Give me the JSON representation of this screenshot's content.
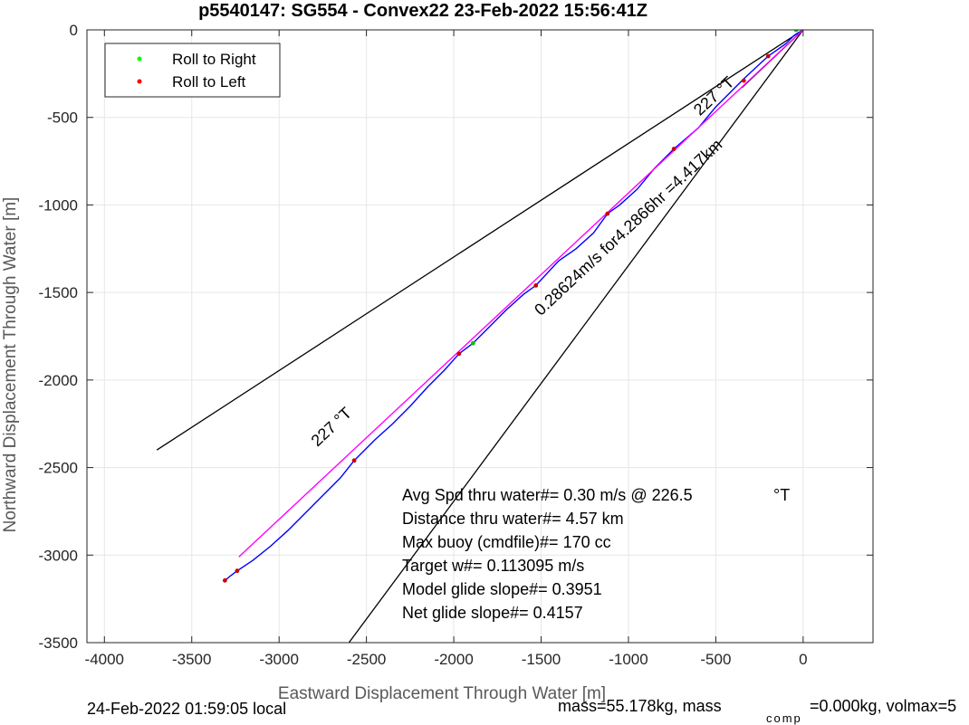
{
  "chart_data": {
    "type": "line",
    "title": "p5540147: SG554 - Convex22 23-Feb-2022 15:56:41Z",
    "xlabel": "Eastward Displacement Through Water [m]",
    "ylabel": "Northward Displacement Through Water [m]",
    "xlim": [
      -4100,
      400
    ],
    "ylim": [
      -3500,
      0
    ],
    "xticks": [
      -4000,
      -3500,
      -3000,
      -2500,
      -2000,
      -1500,
      -1000,
      -500,
      0
    ],
    "yticks": [
      0,
      -500,
      -1000,
      -1500,
      -2000,
      -2500,
      -3000,
      -3500
    ],
    "grid": true,
    "legend": {
      "placement": "top-left",
      "entries": [
        {
          "label": "Roll to Right",
          "color": "#00ff00"
        },
        {
          "label": "Roll to Left",
          "color": "#ff0000"
        }
      ]
    },
    "series": [
      {
        "color": "#0000ff",
        "x": [
          0,
          -50,
          -100,
          -200,
          -340,
          -400,
          -500,
          -600,
          -740,
          -850,
          -950,
          -1050,
          -1120,
          -1200,
          -1300,
          -1400,
          -1530,
          -1600,
          -1700,
          -1800,
          -1890,
          -1970,
          -2050,
          -2150,
          -2250,
          -2350,
          -2450,
          -2570,
          -2650,
          -2750,
          -2850,
          -2950,
          -3050,
          -3150,
          -3240,
          -3280,
          -3310
        ],
        "y": [
          0,
          -30,
          -80,
          -150,
          -280,
          -340,
          -440,
          -560,
          -680,
          -790,
          -910,
          -1000,
          -1050,
          -1160,
          -1250,
          -1320,
          -1460,
          -1510,
          -1600,
          -1700,
          -1790,
          -1850,
          -1940,
          -2040,
          -2150,
          -2250,
          -2340,
          -2460,
          -2560,
          -2660,
          -2760,
          -2860,
          -2950,
          -3030,
          -3090,
          -3120,
          -3145
        ]
      },
      {
        "color": "#ff00ff",
        "x": [
          0,
          -3230
        ],
        "y": [
          0,
          -3010
        ]
      }
    ],
    "reference_lines": [
      {
        "color": "#000000",
        "x": [
          0,
          -3700
        ],
        "y": [
          0,
          -2400
        ]
      },
      {
        "color": "#000000",
        "x": [
          0,
          -2600
        ],
        "y": [
          0,
          -3500
        ]
      },
      {
        "color": "#000000",
        "x": [
          0,
          -350
        ],
        "y": [
          0,
          -330
        ]
      }
    ],
    "roll_points": [
      {
        "roll": "right",
        "color": "#00c800",
        "x": -40,
        "y": 0
      },
      {
        "roll": "right",
        "color": "#00c800",
        "x": -1890,
        "y": -1790
      },
      {
        "roll": "left",
        "color": "#cc0000",
        "x": -200,
        "y": -150
      },
      {
        "roll": "left",
        "color": "#cc0000",
        "x": -340,
        "y": -290
      },
      {
        "roll": "left",
        "color": "#cc0000",
        "x": -740,
        "y": -680
      },
      {
        "roll": "left",
        "color": "#cc0000",
        "x": -1120,
        "y": -1050
      },
      {
        "roll": "left",
        "color": "#cc0000",
        "x": -1530,
        "y": -1460
      },
      {
        "roll": "left",
        "color": "#cc0000",
        "x": -1970,
        "y": -1850
      },
      {
        "roll": "left",
        "color": "#cc0000",
        "x": -2570,
        "y": -2460
      },
      {
        "roll": "left",
        "color": "#cc0000",
        "x": -3240,
        "y": -3090
      },
      {
        "roll": "left",
        "color": "#cc0000",
        "x": -3310,
        "y": -3145
      }
    ],
    "annotations": [
      {
        "text": "227 °T",
        "x": -490,
        "y": -400
      },
      {
        "text": "0.28624m/s for4.2866hr =4.417km",
        "x": -980,
        "y": -1150
      },
      {
        "text": "227 °T",
        "x": -2680,
        "y": -2290
      }
    ],
    "stats": [
      {
        "label": "Avg Spd thru water#=",
        "value": "0.30 m/s @ 226.5",
        "unit": "°T"
      },
      {
        "label": "Distance thru water#=",
        "value": "4.57 km"
      },
      {
        "label": "Max buoy (cmdfile)#=",
        "value": "170 cc"
      },
      {
        "label": "Target w#=",
        "value": "0.113095 m/s"
      },
      {
        "label": "Model glide slope#=",
        "value": "0.3951"
      },
      {
        "label": "Net glide slope#=",
        "value": "0.4157"
      }
    ]
  },
  "footer": {
    "local_time": "24-Feb-2022 01:59:05 local",
    "mass_text": "mass=55.178kg, mass",
    "comp_sub": "comp",
    "comp_text": "=0.000kg, volmax=5"
  }
}
